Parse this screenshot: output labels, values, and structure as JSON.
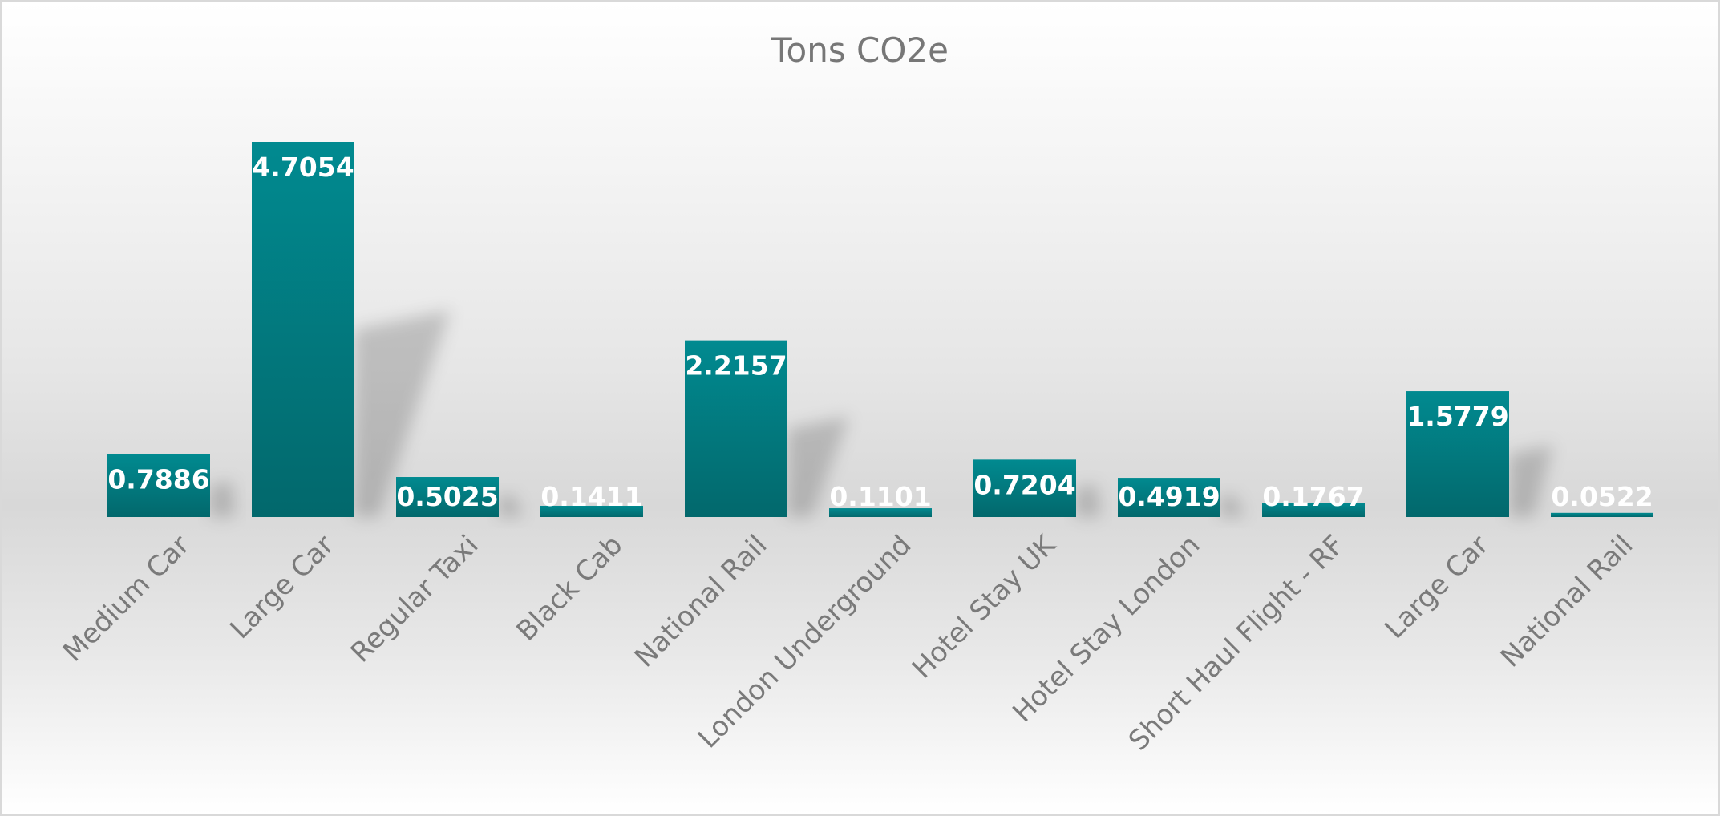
{
  "chart_data": {
    "type": "bar",
    "title": "Tons CO2e",
    "categories": [
      "Medium Car",
      "Large Car",
      "Regular Taxi",
      "Black Cab",
      "National Rail",
      "London Underground",
      "Hotel Stay UK",
      "Hotel Stay London",
      "Short Haul Flight - RF",
      "Large Car",
      "National Rail"
    ],
    "values": [
      0.7886,
      4.7054,
      0.5025,
      0.1411,
      2.2157,
      0.1101,
      0.7204,
      0.4919,
      0.1767,
      1.5779,
      0.0522
    ],
    "value_labels": [
      "0.7886",
      "4.7054",
      "0.5025",
      "0.1411",
      "2.2157",
      "0.1101",
      "0.7204",
      "0.4919",
      "0.1767",
      "1.5779",
      "0.0522"
    ],
    "xlabel": "",
    "ylabel": "",
    "ylim": [
      0,
      4.7054
    ],
    "grid": false,
    "legend": "none",
    "colors": {
      "bar_top": "#018a90",
      "bar_bottom": "#02686c",
      "label": "#ffffff",
      "category": "#7a7a7a"
    }
  }
}
